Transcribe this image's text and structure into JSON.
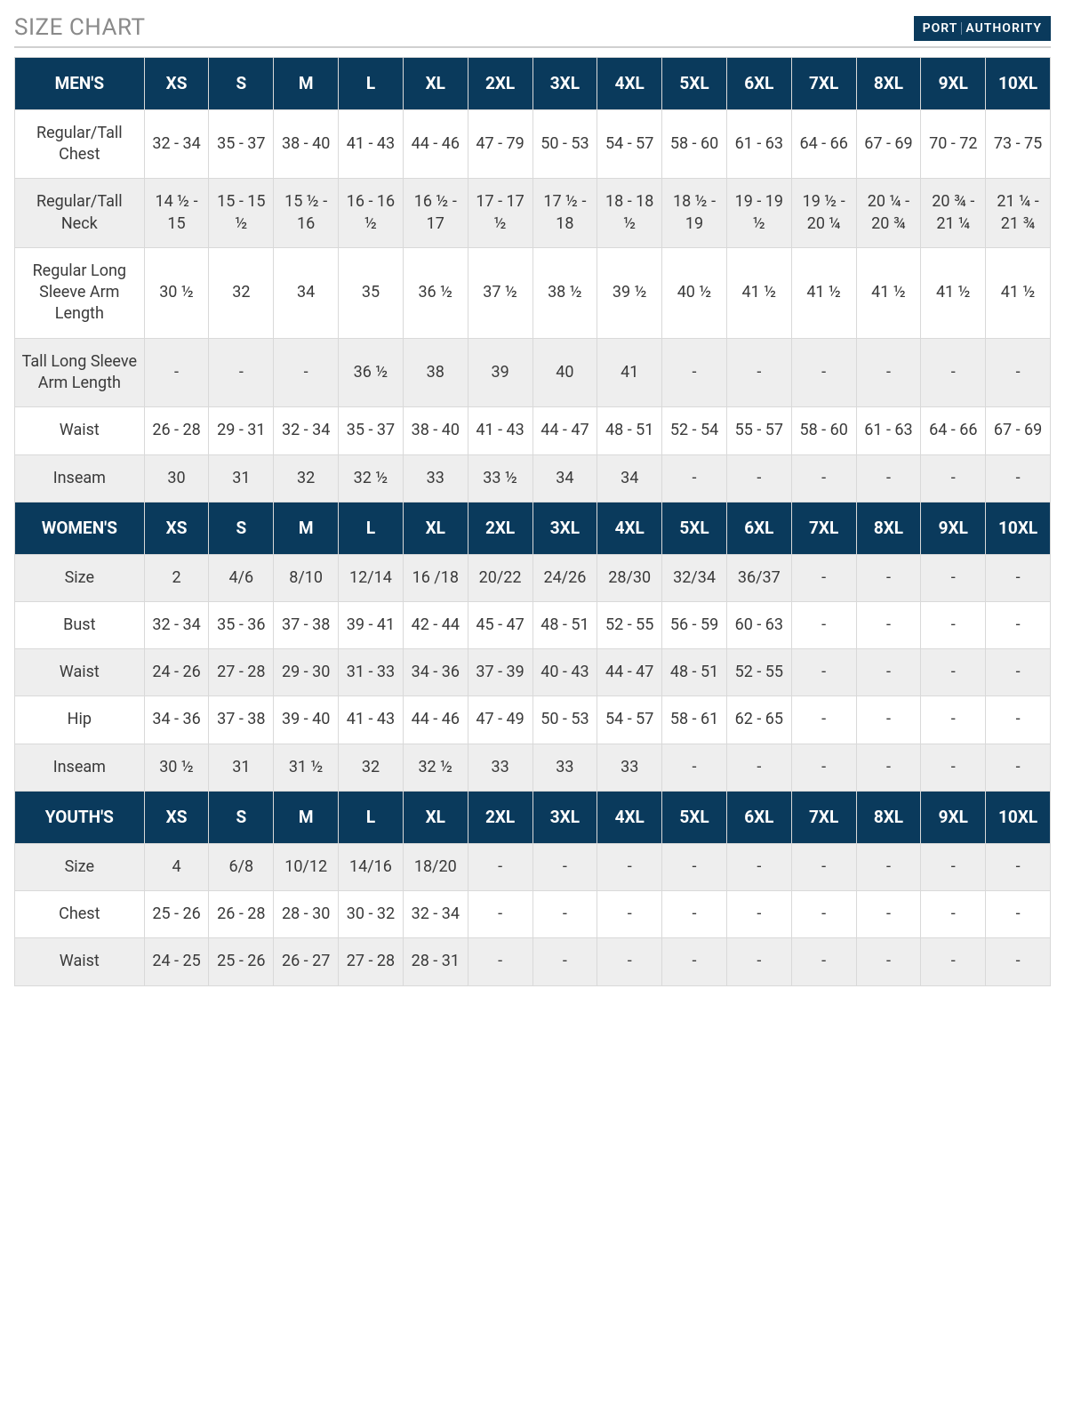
{
  "title": "SIZE CHART",
  "brand": {
    "part1": "PORT",
    "part2": "AUTHORITY"
  },
  "colors": {
    "header_bg": "#0a3a5c",
    "header_text": "#ffffff",
    "title_text": "#8a8a8a",
    "border": "#d9d9d9",
    "alt_row_bg": "#eeeeee",
    "text": "#3a3a3a"
  },
  "sizes": [
    "XS",
    "S",
    "M",
    "L",
    "XL",
    "2XL",
    "3XL",
    "4XL",
    "5XL",
    "6XL",
    "7XL",
    "8XL",
    "9XL",
    "10XL"
  ],
  "sections": [
    {
      "name": "MEN'S",
      "rows": [
        {
          "label": "Regular/Tall Chest",
          "alt": false,
          "values": [
            "32 - 34",
            "35 - 37",
            "38 - 40",
            "41 - 43",
            "44 - 46",
            "47 - 79",
            "50 - 53",
            "54 - 57",
            "58 - 60",
            "61 - 63",
            "64 - 66",
            "67 - 69",
            "70 - 72",
            "73 - 75"
          ]
        },
        {
          "label": "Regular/Tall Neck",
          "alt": true,
          "values": [
            "14 ½ - 15",
            "15 - 15 ½",
            "15 ½ - 16",
            "16 - 16 ½",
            "16 ½ - 17",
            "17 - 17 ½",
            "17 ½ - 18",
            "18 - 18 ½",
            "18 ½ - 19",
            "19 - 19 ½",
            "19 ½ - 20 ¼",
            "20 ¼ - 20 ¾",
            "20 ¾ - 21 ¼",
            "21 ¼ - 21 ¾"
          ]
        },
        {
          "label": "Regular Long Sleeve Arm Length",
          "alt": false,
          "values": [
            "30 ½",
            "32",
            "34",
            "35",
            "36 ½",
            "37 ½",
            "38 ½",
            "39 ½",
            "40 ½",
            "41 ½",
            "41 ½",
            "41 ½",
            "41 ½",
            "41 ½"
          ]
        },
        {
          "label": "Tall Long Sleeve Arm Length",
          "alt": true,
          "values": [
            "-",
            "-",
            "-",
            "36 ½",
            "38",
            "39",
            "40",
            "41",
            "-",
            "-",
            "-",
            "-",
            "-",
            "-"
          ]
        },
        {
          "label": "Waist",
          "alt": false,
          "values": [
            "26 - 28",
            "29 - 31",
            "32 - 34",
            "35 - 37",
            "38 - 40",
            "41 - 43",
            "44 - 47",
            "48 - 51",
            "52 - 54",
            "55 - 57",
            "58 - 60",
            "61 - 63",
            "64 - 66",
            "67 - 69"
          ]
        },
        {
          "label": "Inseam",
          "alt": true,
          "values": [
            "30",
            "31",
            "32",
            "32 ½",
            "33",
            "33 ½",
            "34",
            "34",
            "-",
            "-",
            "-",
            "-",
            "-",
            "-"
          ]
        }
      ]
    },
    {
      "name": "WOMEN'S",
      "rows": [
        {
          "label": "Size",
          "alt": true,
          "values": [
            "2",
            "4/6",
            "8/10",
            "12/14",
            "16 /18",
            "20/22",
            "24/26",
            "28/30",
            "32/34",
            "36/37",
            "-",
            "-",
            "-",
            "-"
          ]
        },
        {
          "label": "Bust",
          "alt": false,
          "values": [
            "32 - 34",
            "35 - 36",
            "37 - 38",
            "39 - 41",
            "42 - 44",
            "45 - 47",
            "48 - 51",
            "52 - 55",
            "56 - 59",
            "60 - 63",
            "-",
            "-",
            "-",
            "-"
          ]
        },
        {
          "label": "Waist",
          "alt": true,
          "values": [
            "24 - 26",
            "27 - 28",
            "29 - 30",
            "31 - 33",
            "34 - 36",
            "37 - 39",
            "40 - 43",
            "44 - 47",
            "48 - 51",
            "52 - 55",
            "-",
            "-",
            "-",
            "-"
          ]
        },
        {
          "label": "Hip",
          "alt": false,
          "values": [
            "34 - 36",
            "37 - 38",
            "39 - 40",
            "41 - 43",
            "44 - 46",
            "47 - 49",
            "50 - 53",
            "54 - 57",
            "58 - 61",
            "62 - 65",
            "-",
            "-",
            "-",
            "-"
          ]
        },
        {
          "label": "Inseam",
          "alt": true,
          "values": [
            "30 ½",
            "31",
            "31 ½",
            "32",
            "32 ½",
            "33",
            "33",
            "33",
            "-",
            "-",
            "-",
            "-",
            "-",
            "-"
          ]
        }
      ]
    },
    {
      "name": "YOUTH'S",
      "rows": [
        {
          "label": "Size",
          "alt": true,
          "values": [
            "4",
            "6/8",
            "10/12",
            "14/16",
            "18/20",
            "-",
            "-",
            "-",
            "-",
            "-",
            "-",
            "-",
            "-",
            "-"
          ]
        },
        {
          "label": "Chest",
          "alt": false,
          "values": [
            "25 - 26",
            "26 - 28",
            "28 - 30",
            "30 - 32",
            "32 - 34",
            "-",
            "-",
            "-",
            "-",
            "-",
            "-",
            "-",
            "-",
            "-"
          ]
        },
        {
          "label": "Waist",
          "alt": true,
          "values": [
            "24 - 25",
            "25 - 26",
            "26 - 27",
            "27 - 28",
            "28 - 31",
            "-",
            "-",
            "-",
            "-",
            "-",
            "-",
            "-",
            "-",
            "-"
          ]
        }
      ]
    }
  ]
}
